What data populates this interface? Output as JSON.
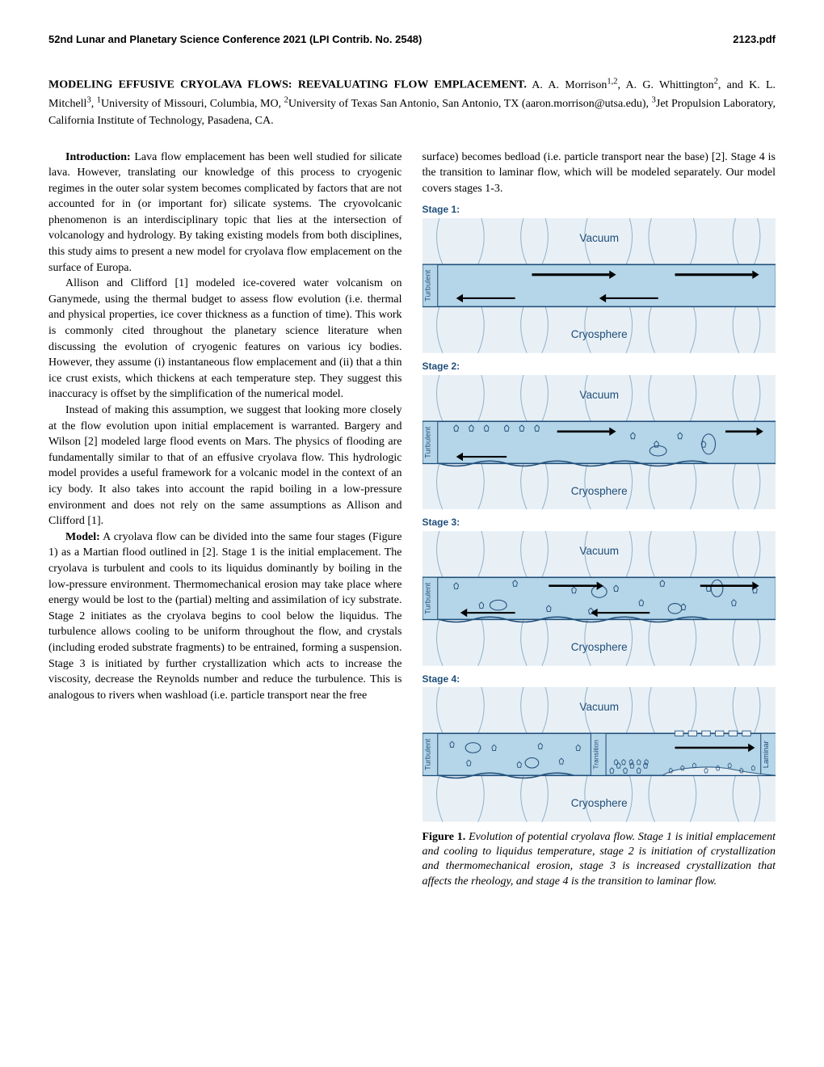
{
  "header": {
    "left": "52nd Lunar and Planetary Science Conference 2021 (LPI Contrib. No. 2548)",
    "right": "2123.pdf"
  },
  "title": "MODELING EFFUSIVE CRYOLAVA FLOWS: REEVALUATING FLOW EMPLACEMENT.",
  "authors_html": "  A. A. Morrison<sup>1,2</sup>, A. G. Whittington<sup>2</sup>, and K. L. Mitchell<sup>3</sup>, <sup>1</sup>University of Missouri, Columbia, MO, <sup>2</sup>University of Texas San Antonio, San Antonio, TX (aaron.morrison@utsa.edu), <sup>3</sup>Jet Propulsion Laboratory, California Institute of Technology, Pasadena, CA.",
  "left_col": {
    "p1_head": "Introduction:",
    "p1": "  Lava flow emplacement has been well studied for silicate lava. However, translating our knowledge of this process to cryogenic regimes in the outer solar system becomes complicated by factors that are not accounted for in (or important for) silicate systems. The cryovolcanic phenomenon is an interdisciplinary topic that lies at the intersection of volcanology and hydrology. By taking existing models from both disciplines, this study aims to present a new model for cryolava flow emplacement on the surface of Europa.",
    "p2": "Allison and Clifford [1] modeled ice-covered water volcanism on Ganymede, using the thermal budget to assess flow evolution (i.e. thermal and physical properties, ice cover thickness as a function of time). This work is commonly cited throughout the planetary science literature when discussing the evolution of cryogenic features on various icy bodies. However, they assume (i) instantaneous flow emplacement and (ii) that a thin ice crust exists, which thickens at each temperature step. They suggest this inaccuracy is offset by the simplification of the numerical model.",
    "p3": "Instead of making this assumption, we suggest that looking more closely at the flow evolution upon initial emplacement is warranted. Bargery and Wilson [2] modeled large flood events on Mars. The physics of flooding are fundamentally similar to that of an effusive cryolava flow. This hydrologic model provides a useful framework for a volcanic model in the context of an icy body. It also takes into account the rapid boiling in a low-pressure environment and does not rely on the same assumptions as Allison and Clifford [1].",
    "p4_head": "Model:",
    "p4": "  A cryolava flow can be divided into the same four stages (Figure 1) as a Martian flood outlined in [2]. Stage 1 is the initial emplacement. The cryolava is turbulent and cools to its liquidus dominantly by boiling in the low-pressure environment. Thermomechanical erosion may take place where energy would be lost to the (partial) melting and assimilation of icy substrate. Stage 2 initiates as the cryolava begins to cool below the liquidus. The turbulence allows cooling to be uniform throughout the flow, and crystals (including eroded substrate fragments) to be entrained, forming a suspension. Stage 3 is initiated by further crystallization which acts to increase the viscosity, decrease the Reynolds number and reduce the turbulence. This is analogous to rivers when washload (i.e. particle transport near the free"
  },
  "right_col": {
    "p1": "surface) becomes bedload (i.e. particle transport near the base) [2]. Stage 4 is the transition to laminar flow, which will be modeled separately. Our model covers stages 1-3."
  },
  "figure": {
    "stages": [
      {
        "label": "Stage 1:",
        "type": 1
      },
      {
        "label": "Stage 2:",
        "type": 2
      },
      {
        "label": "Stage 3:",
        "type": 3
      },
      {
        "label": "Stage 4:",
        "type": 4
      }
    ],
    "vacuum_label": "Vacuum",
    "cryosphere_label": "Cryosphere",
    "turbulent_label": "Turbulent",
    "transition_label": "Transition",
    "laminar_label": "Laminar",
    "colors": {
      "water": "#b5d5e8",
      "water_stroke": "#1f4e79",
      "ice_fill": "#e8f0f6",
      "crack_color": "#5b8bb0",
      "text_color": "#1f4e79",
      "arrow_color": "#000000"
    },
    "caption_num": "Figure 1.",
    "caption": " Evolution of potential cryolava flow. Stage 1 is initial emplacement and cooling to liquidus temperature, stage 2 is initiation of crystallization and thermomechanical erosion, stage 3 is increased crystallization that affects the rheology, and stage 4 is the transition to laminar flow."
  }
}
